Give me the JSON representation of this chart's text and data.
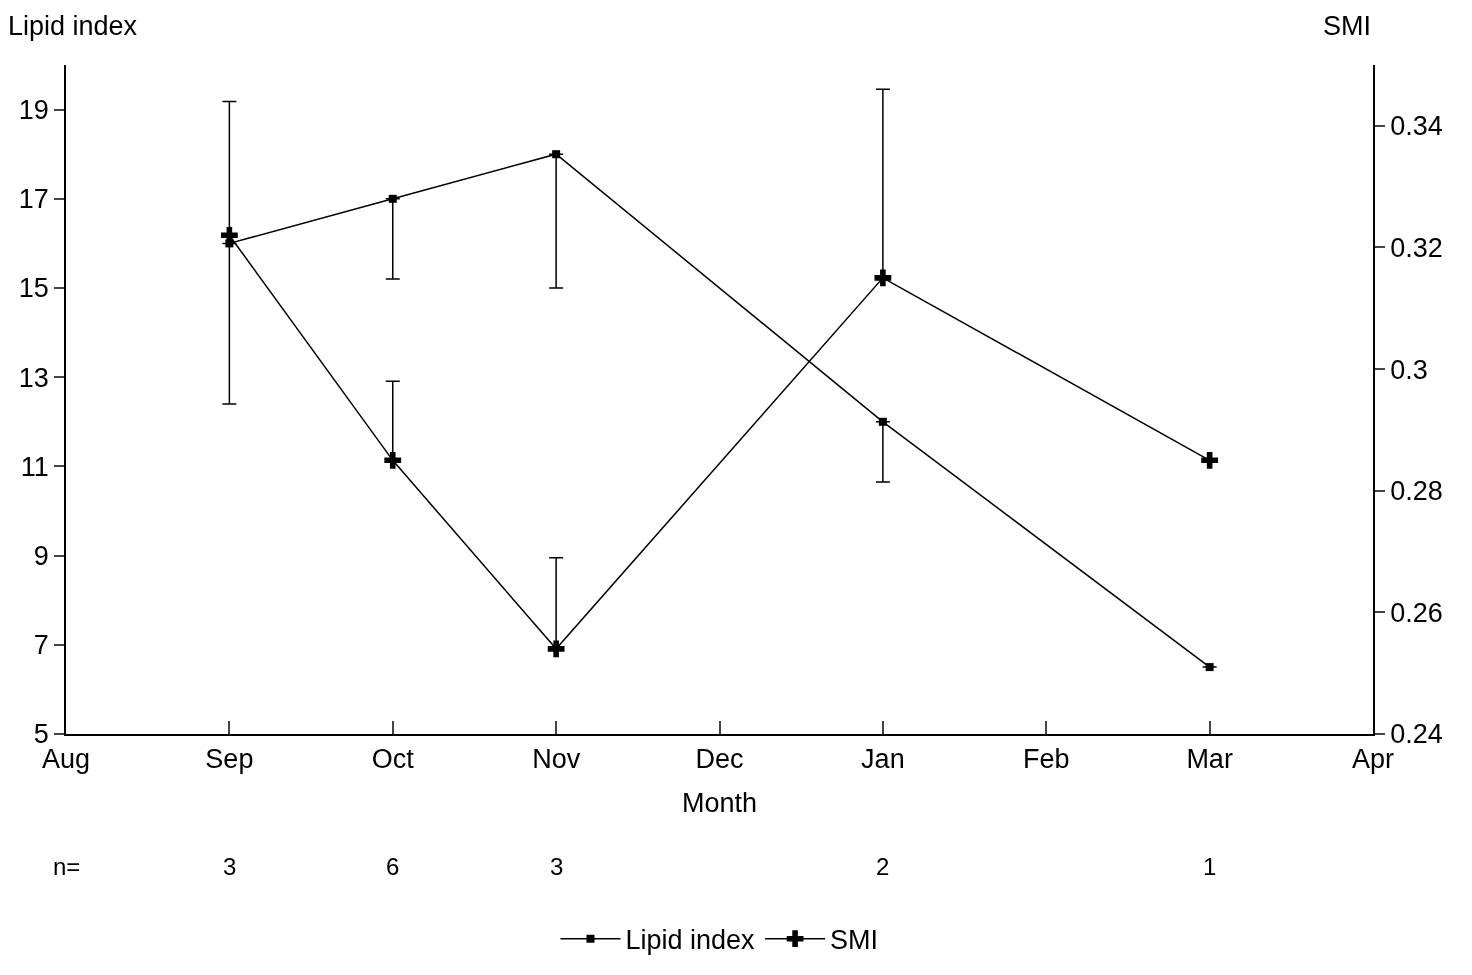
{
  "chart_data": {
    "type": "line",
    "xlabel": "Month",
    "ylabel": "Lipid index",
    "y2label": "SMI",
    "categories": [
      "Aug",
      "Sep",
      "Oct",
      "Nov",
      "Dec",
      "Jan",
      "Feb",
      "Mar",
      "Apr"
    ],
    "series": [
      {
        "name": "Lipid index",
        "color": "#000000",
        "marker": "square",
        "values": [
          null,
          16,
          17,
          18,
          null,
          12,
          null,
          6.5,
          null
        ],
        "errors": [
          null,
          [
            12.4,
            16
          ],
          [
            15.2,
            17
          ],
          [
            15,
            18
          ],
          null,
          [
            10.65,
            12
          ],
          null,
          null,
          null
        ]
      },
      {
        "name": "SMI",
        "color": "#000000",
        "marker": "cross",
        "axis": "y2",
        "values": [
          null,
          0.322,
          0.285,
          0.254,
          null,
          0.315,
          null,
          0.285,
          null
        ],
        "errors": [
          null,
          [
            0.322,
            0.344
          ],
          [
            0.285,
            0.298
          ],
          [
            0.254,
            0.269
          ],
          null,
          [
            0.315,
            0.346
          ],
          null,
          null,
          null
        ]
      }
    ],
    "ylim": [
      5,
      20
    ],
    "yticks": [
      5,
      7,
      9,
      11,
      13,
      15,
      17,
      19
    ],
    "y2lim": [
      0.24,
      0.35
    ],
    "y2ticks": [
      0.24,
      0.26,
      0.28,
      0.3,
      0.32,
      0.34
    ],
    "annotations": [
      "n=",
      "3",
      "6",
      "3",
      "2",
      "1"
    ],
    "legend": "bottom",
    "line_style": "solid"
  }
}
